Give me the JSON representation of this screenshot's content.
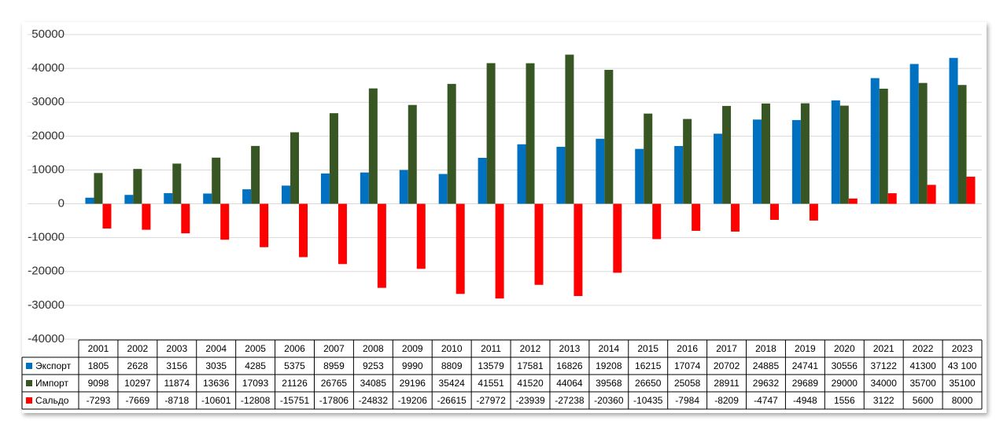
{
  "chart_data": {
    "type": "bar",
    "categories": [
      "2001",
      "2002",
      "2003",
      "2004",
      "2005",
      "2006",
      "2007",
      "2008",
      "2009",
      "2010",
      "2011",
      "2012",
      "2013",
      "2014",
      "2015",
      "2016",
      "2017",
      "2018",
      "2019",
      "2020",
      "2021",
      "2022",
      "2023"
    ],
    "series": [
      {
        "name": "Экспорт",
        "color": "#0070c0",
        "values": [
          1805,
          2628,
          3156,
          3035,
          4285,
          5375,
          8959,
          9253,
          9990,
          8809,
          13579,
          17581,
          16826,
          19208,
          16215,
          17074,
          20702,
          24885,
          24741,
          30556,
          37122,
          41300,
          43100
        ],
        "value_labels": [
          "1805",
          "2628",
          "3156",
          "3035",
          "4285",
          "5375",
          "8959",
          "9253",
          "9990",
          "8809",
          "13579",
          "17581",
          "16826",
          "19208",
          "16215",
          "17074",
          "20702",
          "24885",
          "24741",
          "30556",
          "37122",
          "41300",
          "43 100"
        ]
      },
      {
        "name": "Импорт",
        "color": "#375623",
        "values": [
          9098,
          10297,
          11874,
          13636,
          17093,
          21126,
          26765,
          34085,
          29196,
          35424,
          41551,
          41520,
          44064,
          39568,
          26650,
          25058,
          28911,
          29632,
          29689,
          29000,
          34000,
          35700,
          35100
        ]
      },
      {
        "name": "Сальдо",
        "color": "#ff0000",
        "values": [
          -7293,
          -7669,
          -8718,
          -10601,
          -12808,
          -15751,
          -17806,
          -24832,
          -19206,
          -26615,
          -27972,
          -23939,
          -27238,
          -20360,
          -10435,
          -7984,
          -8209,
          -4747,
          -4948,
          1556,
          3122,
          5600,
          8000
        ]
      }
    ],
    "ylim": [
      -40000,
      50000
    ],
    "yticks": [
      -40000,
      -30000,
      -20000,
      -10000,
      0,
      10000,
      20000,
      30000,
      40000,
      50000
    ],
    "grid": true
  }
}
